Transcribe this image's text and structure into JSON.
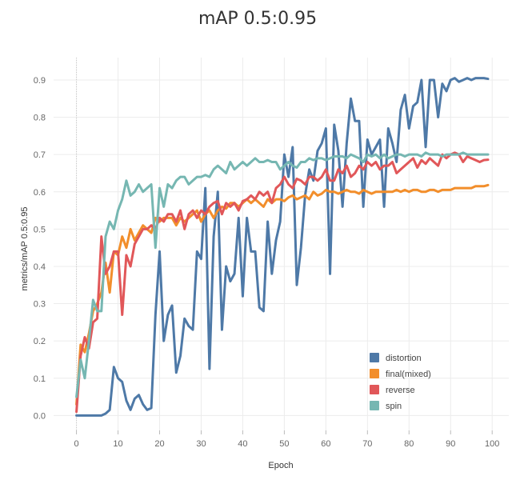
{
  "chart_data": {
    "type": "line",
    "title": "mAP 0.5:0.95",
    "xlabel": "Epoch",
    "ylabel": "metrics/mAP 0.5:0.95",
    "xlim": [
      -5.5,
      104
    ],
    "ylim": [
      -0.04,
      0.96
    ],
    "xticks": [
      "0",
      "10",
      "20",
      "30",
      "40",
      "50",
      "60",
      "70",
      "80",
      "90",
      "100"
    ],
    "yticks": [
      "0.0",
      "0.1",
      "0.2",
      "0.3",
      "0.4",
      "0.5",
      "0.6",
      "0.7",
      "0.8",
      "0.9"
    ],
    "grid": true,
    "legend_position": "bottom-right",
    "series": [
      {
        "name": "distortion",
        "color": "#4e79a7",
        "x": [
          0,
          1,
          2,
          3,
          4,
          5,
          6,
          7,
          8,
          9,
          10,
          11,
          12,
          13,
          14,
          15,
          16,
          17,
          18,
          19,
          20,
          21,
          22,
          23,
          24,
          25,
          26,
          27,
          28,
          29,
          30,
          31,
          32,
          33,
          34,
          35,
          36,
          37,
          38,
          39,
          40,
          41,
          42,
          43,
          44,
          45,
          46,
          47,
          48,
          49,
          50,
          51,
          52,
          53,
          54,
          55,
          56,
          57,
          58,
          59,
          60,
          61,
          62,
          63,
          64,
          65,
          66,
          67,
          68,
          69,
          70,
          71,
          72,
          73,
          74,
          75,
          76,
          77,
          78,
          79,
          80,
          81,
          82,
          83,
          84,
          85,
          86,
          87,
          88,
          89,
          90,
          91,
          92,
          93,
          94,
          95,
          96,
          97,
          98,
          99
        ],
        "values": [
          0.0,
          0.0,
          0.0,
          0.0,
          0.0,
          0.0,
          0.0,
          0.005,
          0.015,
          0.13,
          0.1,
          0.09,
          0.04,
          0.015,
          0.045,
          0.055,
          0.03,
          0.015,
          0.02,
          0.27,
          0.44,
          0.2,
          0.27,
          0.295,
          0.115,
          0.16,
          0.26,
          0.24,
          0.23,
          0.44,
          0.42,
          0.61,
          0.125,
          0.48,
          0.6,
          0.23,
          0.4,
          0.36,
          0.38,
          0.53,
          0.32,
          0.53,
          0.44,
          0.44,
          0.29,
          0.28,
          0.52,
          0.38,
          0.47,
          0.52,
          0.7,
          0.64,
          0.72,
          0.35,
          0.45,
          0.59,
          0.66,
          0.63,
          0.71,
          0.73,
          0.77,
          0.38,
          0.78,
          0.71,
          0.56,
          0.73,
          0.85,
          0.79,
          0.79,
          0.56,
          0.74,
          0.7,
          0.72,
          0.74,
          0.56,
          0.77,
          0.73,
          0.68,
          0.82,
          0.86,
          0.77,
          0.83,
          0.84,
          0.9,
          0.72,
          0.9,
          0.9,
          0.8,
          0.89,
          0.87,
          0.9,
          0.905,
          0.895,
          0.9,
          0.905,
          0.9,
          0.905,
          0.905,
          0.905,
          0.903
        ]
      },
      {
        "name": "final(mixed)",
        "color": "#f28e2b",
        "x": [
          0,
          1,
          2,
          3,
          4,
          5,
          6,
          7,
          8,
          9,
          10,
          11,
          12,
          13,
          14,
          15,
          16,
          17,
          18,
          19,
          20,
          21,
          22,
          23,
          24,
          25,
          26,
          27,
          28,
          29,
          30,
          31,
          32,
          33,
          34,
          35,
          36,
          37,
          38,
          39,
          40,
          41,
          42,
          43,
          44,
          45,
          46,
          47,
          48,
          49,
          50,
          51,
          52,
          53,
          54,
          55,
          56,
          57,
          58,
          59,
          60,
          61,
          62,
          63,
          64,
          65,
          66,
          67,
          68,
          69,
          70,
          71,
          72,
          73,
          74,
          75,
          76,
          77,
          78,
          79,
          80,
          81,
          82,
          83,
          84,
          85,
          86,
          87,
          88,
          89,
          90,
          91,
          92,
          93,
          94,
          95,
          96,
          97,
          98,
          99
        ],
        "values": [
          0.03,
          0.19,
          0.17,
          0.22,
          0.28,
          0.3,
          0.33,
          0.41,
          0.33,
          0.44,
          0.43,
          0.48,
          0.45,
          0.5,
          0.47,
          0.49,
          0.51,
          0.5,
          0.49,
          0.53,
          0.52,
          0.53,
          0.53,
          0.53,
          0.51,
          0.53,
          0.52,
          0.53,
          0.54,
          0.55,
          0.52,
          0.54,
          0.55,
          0.53,
          0.55,
          0.56,
          0.555,
          0.57,
          0.57,
          0.56,
          0.57,
          0.58,
          0.57,
          0.58,
          0.57,
          0.56,
          0.58,
          0.57,
          0.58,
          0.58,
          0.575,
          0.585,
          0.59,
          0.58,
          0.585,
          0.59,
          0.58,
          0.6,
          0.59,
          0.595,
          0.605,
          0.6,
          0.6,
          0.595,
          0.6,
          0.605,
          0.6,
          0.6,
          0.595,
          0.605,
          0.6,
          0.595,
          0.6,
          0.6,
          0.6,
          0.6,
          0.6,
          0.605,
          0.6,
          0.605,
          0.6,
          0.605,
          0.605,
          0.6,
          0.6,
          0.605,
          0.605,
          0.6,
          0.605,
          0.605,
          0.605,
          0.61,
          0.61,
          0.61,
          0.61,
          0.61,
          0.615,
          0.615,
          0.615,
          0.618
        ]
      },
      {
        "name": "reverse",
        "color": "#e15759",
        "x": [
          0,
          1,
          2,
          3,
          4,
          5,
          6,
          7,
          8,
          9,
          10,
          11,
          12,
          13,
          14,
          15,
          16,
          17,
          18,
          19,
          20,
          21,
          22,
          23,
          24,
          25,
          26,
          27,
          28,
          29,
          30,
          31,
          32,
          33,
          34,
          35,
          36,
          37,
          38,
          39,
          40,
          41,
          42,
          43,
          44,
          45,
          46,
          47,
          48,
          49,
          50,
          51,
          52,
          53,
          54,
          55,
          56,
          57,
          58,
          59,
          60,
          61,
          62,
          63,
          64,
          65,
          66,
          67,
          68,
          69,
          70,
          71,
          72,
          73,
          74,
          75,
          76,
          77,
          78,
          79,
          80,
          81,
          82,
          83,
          84,
          85,
          86,
          87,
          88,
          89,
          90,
          91,
          92,
          93,
          94,
          95,
          96,
          97,
          98,
          99
        ],
        "values": [
          0.01,
          0.16,
          0.21,
          0.18,
          0.25,
          0.26,
          0.48,
          0.38,
          0.4,
          0.44,
          0.44,
          0.27,
          0.43,
          0.4,
          0.46,
          0.48,
          0.5,
          0.5,
          0.51,
          0.5,
          0.53,
          0.52,
          0.54,
          0.54,
          0.52,
          0.55,
          0.5,
          0.54,
          0.55,
          0.53,
          0.55,
          0.54,
          0.56,
          0.57,
          0.575,
          0.54,
          0.57,
          0.56,
          0.57,
          0.55,
          0.575,
          0.58,
          0.59,
          0.58,
          0.6,
          0.59,
          0.6,
          0.57,
          0.61,
          0.62,
          0.64,
          0.62,
          0.61,
          0.635,
          0.63,
          0.62,
          0.64,
          0.64,
          0.63,
          0.64,
          0.66,
          0.63,
          0.63,
          0.66,
          0.65,
          0.67,
          0.64,
          0.65,
          0.67,
          0.66,
          0.68,
          0.67,
          0.68,
          0.66,
          0.67,
          0.67,
          0.68,
          0.65,
          0.66,
          0.67,
          0.68,
          0.69,
          0.665,
          0.685,
          0.675,
          0.69,
          0.68,
          0.67,
          0.7,
          0.69,
          0.7,
          0.705,
          0.7,
          0.68,
          0.695,
          0.69,
          0.685,
          0.68,
          0.685,
          0.686
        ]
      },
      {
        "name": "spin",
        "color": "#76b7b2",
        "x": [
          0,
          1,
          2,
          3,
          4,
          5,
          6,
          7,
          8,
          9,
          10,
          11,
          12,
          13,
          14,
          15,
          16,
          17,
          18,
          19,
          20,
          21,
          22,
          23,
          24,
          25,
          26,
          27,
          28,
          29,
          30,
          31,
          32,
          33,
          34,
          35,
          36,
          37,
          38,
          39,
          40,
          41,
          42,
          43,
          44,
          45,
          46,
          47,
          48,
          49,
          50,
          51,
          52,
          53,
          54,
          55,
          56,
          57,
          58,
          59,
          60,
          61,
          62,
          63,
          64,
          65,
          66,
          67,
          68,
          69,
          70,
          71,
          72,
          73,
          74,
          75,
          76,
          77,
          78,
          79,
          80,
          81,
          82,
          83,
          84,
          85,
          86,
          87,
          88,
          89,
          90,
          91,
          92,
          93,
          94,
          95,
          96,
          97,
          98,
          99
        ],
        "values": [
          0.05,
          0.15,
          0.1,
          0.2,
          0.31,
          0.28,
          0.28,
          0.48,
          0.52,
          0.5,
          0.55,
          0.58,
          0.63,
          0.59,
          0.6,
          0.62,
          0.6,
          0.61,
          0.62,
          0.45,
          0.61,
          0.56,
          0.62,
          0.61,
          0.63,
          0.64,
          0.64,
          0.62,
          0.63,
          0.64,
          0.64,
          0.645,
          0.64,
          0.66,
          0.67,
          0.66,
          0.65,
          0.68,
          0.66,
          0.67,
          0.68,
          0.67,
          0.68,
          0.69,
          0.68,
          0.68,
          0.685,
          0.68,
          0.68,
          0.66,
          0.67,
          0.68,
          0.67,
          0.665,
          0.68,
          0.68,
          0.69,
          0.685,
          0.69,
          0.69,
          0.685,
          0.69,
          0.695,
          0.695,
          0.695,
          0.69,
          0.7,
          0.695,
          0.69,
          0.68,
          0.7,
          0.695,
          0.7,
          0.69,
          0.7,
          0.69,
          0.695,
          0.7,
          0.7,
          0.695,
          0.7,
          0.7,
          0.7,
          0.695,
          0.705,
          0.7,
          0.7,
          0.7,
          0.695,
          0.7,
          0.7,
          0.7,
          0.7,
          0.705,
          0.7,
          0.7,
          0.7,
          0.7,
          0.7,
          0.7
        ]
      }
    ]
  }
}
